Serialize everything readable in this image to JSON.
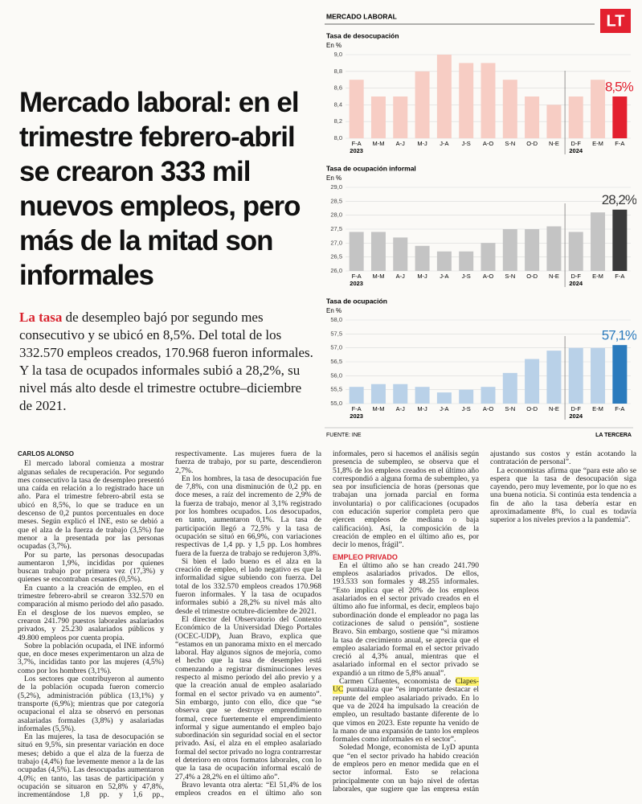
{
  "headline": "Mercado laboral: en el trimestre febrero-abril se crearon 333 mil nuevos empleos, pero más de la mitad son informales",
  "lead": {
    "highlight": "La tasa",
    "text": " de desempleo bajó por segundo mes consecutivo y se ubicó en 8,5%. Del total de los 332.570 empleos creados, 170.968 fueron informales. Y la tasa de ocupados informales subió a 28,2%, su nivel más alto desde el trimestre octubre–diciembre de 2021."
  },
  "sidebar": {
    "label": "MERCADO LABORAL",
    "logo": "LT",
    "source": "FUENTE: INE",
    "credit": "LA TERCERA"
  },
  "chart_data": [
    {
      "type": "bar",
      "title": "Tasa de desocupación",
      "unit": "En %",
      "categories": [
        "F-A",
        "M-M",
        "A-J",
        "M-J",
        "J-A",
        "J-S",
        "A-O",
        "S-N",
        "O-D",
        "N-E",
        "D-F",
        "E-M",
        "F-A"
      ],
      "years": [
        "2023",
        null,
        null,
        null,
        null,
        null,
        null,
        null,
        null,
        null,
        "2024",
        null,
        null
      ],
      "values": [
        8.7,
        8.5,
        8.5,
        8.8,
        9.0,
        8.9,
        8.9,
        8.7,
        8.5,
        8.4,
        8.5,
        8.7,
        8.5
      ],
      "value_labels": [
        null,
        null,
        null,
        null,
        null,
        null,
        null,
        null,
        null,
        null,
        null,
        null,
        "8,5%"
      ],
      "colors": [
        "#f7cdc4",
        "#f7cdc4",
        "#f7cdc4",
        "#f7cdc4",
        "#f7cdc4",
        "#f7cdc4",
        "#f7cdc4",
        "#f7cdc4",
        "#f7cdc4",
        "#f7cdc4",
        "#f7cdc4",
        "#f7cdc4",
        "#e3202f"
      ],
      "ylim": [
        8.0,
        9.0
      ],
      "yticks": [
        {
          "value": 8.0,
          "label": "8,0"
        },
        {
          "value": 8.2,
          "label": "8,2"
        },
        {
          "value": 8.4,
          "label": "8,4"
        },
        {
          "value": 8.6,
          "label": "8,6"
        },
        {
          "value": 8.8,
          "label": "8,8"
        },
        {
          "value": 9.0,
          "label": "9,0"
        }
      ],
      "grid": true
    },
    {
      "type": "bar",
      "title": "Tasa de ocupación informal",
      "unit": "En %",
      "categories": [
        "F-A",
        "M-M",
        "A-J",
        "M-J",
        "J-A",
        "J-S",
        "A-O",
        "S-N",
        "O-D",
        "N-E",
        "D-F",
        "E-M",
        "F-A"
      ],
      "years": [
        "2023",
        null,
        null,
        null,
        null,
        null,
        null,
        null,
        null,
        null,
        "2024",
        null,
        null
      ],
      "values": [
        27.4,
        27.4,
        27.2,
        26.9,
        26.7,
        26.7,
        27.0,
        27.5,
        27.5,
        27.6,
        27.4,
        28.1,
        28.2
      ],
      "value_labels": [
        null,
        null,
        null,
        null,
        null,
        null,
        null,
        null,
        null,
        null,
        null,
        null,
        "28,2%"
      ],
      "colors": [
        "#c4c4c4",
        "#c4c4c4",
        "#c4c4c4",
        "#c4c4c4",
        "#c4c4c4",
        "#c4c4c4",
        "#c4c4c4",
        "#c4c4c4",
        "#c4c4c4",
        "#c4c4c4",
        "#c4c4c4",
        "#c4c4c4",
        "#3a3a3a"
      ],
      "ylim": [
        26.0,
        29.0
      ],
      "yticks": [
        {
          "value": 26.0,
          "label": "26,0"
        },
        {
          "value": 26.5,
          "label": "26,5"
        },
        {
          "value": 27.0,
          "label": "27,0"
        },
        {
          "value": 27.5,
          "label": "27,5"
        },
        {
          "value": 28.0,
          "label": "28,0"
        },
        {
          "value": 28.5,
          "label": "28,5"
        },
        {
          "value": 29.0,
          "label": "29,0"
        }
      ],
      "grid": true
    },
    {
      "type": "bar",
      "title": "Tasa de ocupación",
      "unit": "En %",
      "categories": [
        "F-A",
        "M-M",
        "A-J",
        "M-J",
        "J-A",
        "J-S",
        "A-O",
        "S-N",
        "O-D",
        "N-E",
        "D-F",
        "E-M",
        "F-A"
      ],
      "years": [
        "2023",
        null,
        null,
        null,
        null,
        null,
        null,
        null,
        null,
        null,
        "2024",
        null,
        null
      ],
      "values": [
        55.6,
        55.7,
        55.7,
        55.6,
        55.4,
        55.5,
        55.6,
        56.1,
        56.6,
        56.9,
        57.0,
        57.0,
        57.1
      ],
      "value_labels": [
        null,
        null,
        null,
        null,
        null,
        null,
        null,
        null,
        null,
        null,
        null,
        null,
        "57,1%"
      ],
      "colors": [
        "#b9d1e8",
        "#b9d1e8",
        "#b9d1e8",
        "#b9d1e8",
        "#b9d1e8",
        "#b9d1e8",
        "#b9d1e8",
        "#b9d1e8",
        "#b9d1e8",
        "#b9d1e8",
        "#b9d1e8",
        "#b9d1e8",
        "#2b7bbd"
      ],
      "ylim": [
        55.0,
        58.0
      ],
      "yticks": [
        {
          "value": 55.0,
          "label": "55,0"
        },
        {
          "value": 55.5,
          "label": "55,5"
        },
        {
          "value": 56.0,
          "label": "56,0"
        },
        {
          "value": 56.5,
          "label": "56,5"
        },
        {
          "value": 57.0,
          "label": "57,0"
        },
        {
          "value": 57.5,
          "label": "57,5"
        },
        {
          "value": 58.0,
          "label": "58,0"
        }
      ],
      "grid": true
    }
  ],
  "byline": "CARLOS ALONSO",
  "sections": [
    {
      "paragraphs": [
        "El mercado laboral comienza a mostrar algunas señales de recuperación. Por segundo mes consecutivo la tasa de desempleo presentó una caída en relación a lo registrado hace un año. Para el trimestre febrero-abril esta se ubicó en 8,5%, lo que se traduce en un descenso de 0,2 puntos porcentuales en doce meses. Según explicó el INE, esto se debió a que el alza de la fuerza de trabajo (3,5%) fue menor a la presentada por las personas ocupadas (3,7%).",
        "Por su parte, las personas desocupadas aumentaron 1,9%, incididas por quienes buscan trabajo por primera vez (17,3%) y quienes se encontraban cesantes (0,5%).",
        "En cuanto a la creación de empleo, en el trimestre febrero-abril se crearon 332.570 en comparación al mismo periodo del año pasado. En el desglose de los nuevos empleo, se crearon 241.790 puestos laborales asalariados privados, y 25.230 asalariados públicos y 49.800 empleos por cuenta propia.",
        "Sobre la población ocupada, el INE informó que, en doce meses experimentaron un alza de 3,7%, incididas tanto por las mujeres (4,5%) como por los hombres (3,1%).",
        "Los sectores que contribuyeron al aumento de la población ocupada fueron comercio (5,2%), administración pública (13,1%) y transporte (6,9%); mientras que por categoría ocupacional el alza se observó en personas asalariadas formales (3,8%) y asalariadas informales (5,5%).",
        "En las mujeres, la tasa de desocupación se situó en 9,5%, sin presentar variación en doce meses; debido a que el alza de la fuerza de trabajo (4,4%) fue levemente menor a la de las ocupadas (4,5%). Las desocupadas aumentaron 4,0%; en tanto, las tasas de participación y ocupación se situaron en 52,8% y 47,8%, incrementándose 1,8 pp. y 1,6 pp., respectivamente. Las mujeres fuera de la fuerza de trabajo, por su parte, descendieron 2,7%.",
        "En los hombres, la tasa de desocupación fue de 7,8%, con una disminución de 0,2 pp. en doce meses, a raíz del incremento de 2,9% de la fuerza de trabajo, menor al 3,1% registrado por los hombres ocupados. Los desocupados, en tanto, aumentaron 0,1%. La tasa de participación llegó a 72,5% y la tasa de ocupación se situó en 66,9%, con variaciones respectivas de 1,4 pp. y 1,5 pp. Los hombres fuera de la fuerza de trabajo se redujeron 3,8%.",
        "Si bien el lado bueno es el alza en la creación de empleo, el lado negativo es que la informalidad sigue subiendo con fuerza. Del total de los 332.570 empleos creados 170.968 fueron informales. Y la tasa de ocupados informales subió a 28,2% su nivel más alto desde el trimestre octubre-diciembre de 2021.",
        "El director del Observatorio del Contexto Económico de la Universidad Diego Portales (OCEC-UDP), Juan Bravo, explica que “estamos en un panorama mixto en el mercado laboral. Hay algunos signos de mejoría, como el hecho que la tasa de desempleo está comenzando a registrar disminuciones leves respecto al mismo periodo del año previo y a que la creación anual de empleo asalariado formal en el sector privado va en aumento”. Sin embargo, junto con ello, dice que “se observa que se destruye emprendimiento formal, crece fuertemente el emprendimiento informal y sigue aumentando el empleo bajo subordinación sin seguridad social en el sector privado. Así, el alza en el empleo asalariado formal del sector privado no logra contrarrestar el deterioro en otros formatos laborales, con lo que la tasa de ocupación informal escaló de 27,4% a 28,2% en el último año”.",
        "Bravo levanta otra alerta: “El 51,4% de los empleos creados en el último año son informales, pero si hacemos el análisis según presencia de subempleo, se observa que el 51,8% de los empleos creados en el último año correspondió a alguna forma de subempleo, ya sea por insuficiencia de horas (personas que trabajan una jornada parcial en forma involuntaria) o por calificaciones (ocupados con educación superior completa pero que ejercen empleos de mediana o baja calificación). Así, la composición de la creación de empleo en el último año es, por decir lo menos, frágil”."
      ]
    },
    {
      "heading": "EMPLEO PRIVADO",
      "paragraphs": [
        "En el último año se han creado 241.790 empleos asalariados privados. De ellos, 193.533 son formales y 48.255 informales. “Esto implica que el 20% de los empleos asalariados en el sector privado creados en el último año fue informal, es decir, empleos bajo subordinación donde el empleador no paga las cotizaciones de salud o pensión”, sostiene Bravo. Sin embargo, sostiene que “si miramos la tasa de crecimiento anual, se aprecia que el empleo asalariado formal en el sector privado creció al 4,3% anual, mientras que el asalariado informal en el sector privado se expandió a un ritmo de 5,8% anual”.",
        {
          "before": "Carmen Cifuentes, economista de ",
          "highlight": "Clapes-UC",
          "after": " puntualiza que “es importante destacar el repunte del empleo asalariado privado. En lo que va de 2024 ha impulsado la creación de empleo, un resultado bastante diferente de lo que vimos en 2023. Este repunte ha venido de la mano de una expansión de tanto los empleos formales como informales en el sector”."
        },
        "Soledad Monge, economista de LyD apunta que “en el sector privado ha habido creación de empleos pero en menor medida que en el sector informal. Esto se relaciona principalmente con un bajo nivel de ofertas laborales, que sugiere que las empresa están ajustando sus costos y están acotando la contratación de personal”.",
        "La economistas afirma que “para este año se espera que la tasa de desocupación siga cayendo, pero muy levemente, por lo que no es una buena noticia. Si continúa esta tendencia a fin de año la tasa debería estar en aproximadamente 8%, lo cual es todavía superior a los niveles previos a la pandemia”."
      ]
    }
  ]
}
